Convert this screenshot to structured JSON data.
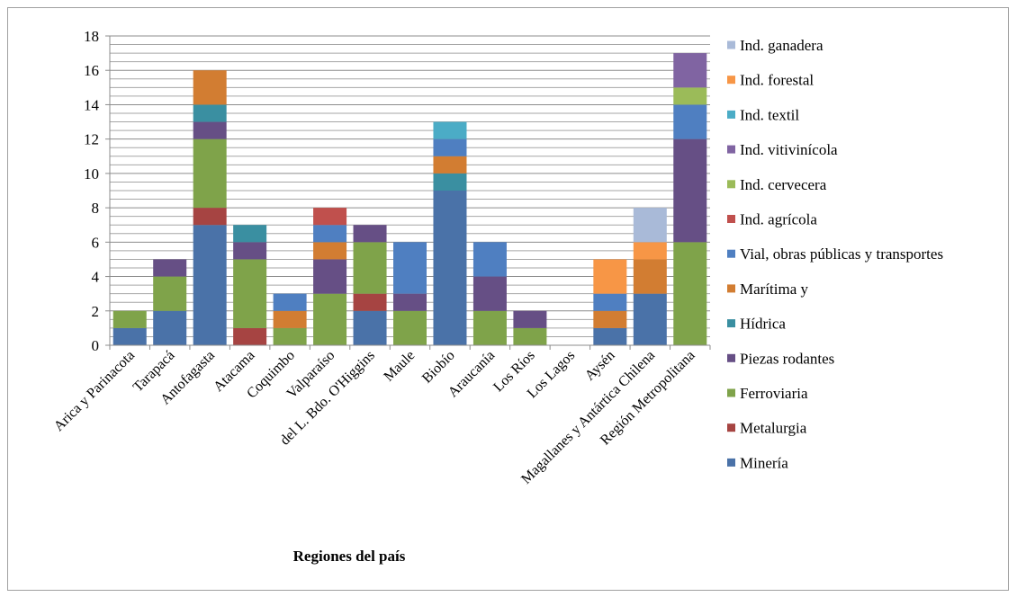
{
  "chart_data": {
    "type": "bar",
    "stacked": true,
    "title": "",
    "xlabel": "Regiones del país",
    "ylabel": "",
    "ylim": [
      0,
      18
    ],
    "ytick_step": 2,
    "grid_step": 0.5,
    "grid": true,
    "legend_position": "right",
    "categories": [
      "Arica y Parinacota",
      "Tarapacá",
      "Antofagasta",
      "Atacama",
      "Coquimbo",
      "Valparaíso",
      "del L. Bdo. O'Higgins",
      "Maule",
      "Biobío",
      "Araucanía",
      "Los Ríos",
      "Los Lagos",
      "Aysén",
      "Magallanes y Antártica Chilena",
      "Región Metropolitana"
    ],
    "series": [
      {
        "name": "Minería",
        "color": "#4a72a8",
        "values": [
          1,
          2,
          7,
          0,
          0,
          0,
          2,
          0,
          9,
          0,
          0,
          0,
          1,
          3,
          0
        ]
      },
      {
        "name": "Metalurgia",
        "color": "#a64442",
        "values": [
          0,
          0,
          1,
          1,
          0,
          0,
          1,
          0,
          0,
          0,
          0,
          0,
          0,
          0,
          0
        ]
      },
      {
        "name": "Ferroviaria",
        "color": "#7fa34a",
        "values": [
          1,
          2,
          4,
          4,
          1,
          3,
          3,
          2,
          0,
          2,
          1,
          0,
          0,
          0,
          6
        ]
      },
      {
        "name": "Piezas rodantes",
        "color": "#664f85",
        "values": [
          0,
          1,
          1,
          1,
          0,
          2,
          1,
          1,
          0,
          2,
          1,
          0,
          0,
          0,
          6
        ]
      },
      {
        "name": "Hídrica",
        "color": "#3a8fa1",
        "values": [
          0,
          0,
          1,
          1,
          0,
          0,
          0,
          0,
          1,
          0,
          0,
          0,
          0,
          0,
          0
        ]
      },
      {
        "name": "Marítima y",
        "color": "#d27d32",
        "values": [
          0,
          0,
          2,
          0,
          1,
          1,
          0,
          0,
          1,
          0,
          0,
          0,
          1,
          2,
          0
        ]
      },
      {
        "name": "Vial, obras públicas y transportes",
        "color": "#4f7fc1",
        "values": [
          0,
          0,
          0,
          0,
          1,
          1,
          0,
          3,
          1,
          2,
          0,
          0,
          1,
          0,
          2
        ]
      },
      {
        "name": "Ind. agrícola",
        "color": "#c0504d",
        "values": [
          0,
          0,
          0,
          0,
          0,
          1,
          0,
          0,
          0,
          0,
          0,
          0,
          0,
          0,
          0
        ]
      },
      {
        "name": "Ind. cervecera",
        "color": "#9bbb59",
        "values": [
          0,
          0,
          0,
          0,
          0,
          0,
          0,
          0,
          0,
          0,
          0,
          0,
          0,
          0,
          1
        ]
      },
      {
        "name": "Ind. vitivinícola",
        "color": "#8064a2",
        "values": [
          0,
          0,
          0,
          0,
          0,
          0,
          0,
          0,
          0,
          0,
          0,
          0,
          0,
          0,
          2
        ]
      },
      {
        "name": "Ind. textil",
        "color": "#4bacc6",
        "values": [
          0,
          0,
          0,
          0,
          0,
          0,
          0,
          0,
          1,
          0,
          0,
          0,
          0,
          0,
          0
        ]
      },
      {
        "name": "Ind. forestal",
        "color": "#f79646",
        "values": [
          0,
          0,
          0,
          0,
          0,
          0,
          0,
          0,
          0,
          0,
          0,
          0,
          2,
          1,
          0
        ]
      },
      {
        "name": "Ind. ganadera",
        "color": "#a9bad8",
        "values": [
          0,
          0,
          0,
          0,
          0,
          0,
          0,
          0,
          0,
          0,
          0,
          0,
          0,
          2,
          0
        ]
      }
    ]
  }
}
